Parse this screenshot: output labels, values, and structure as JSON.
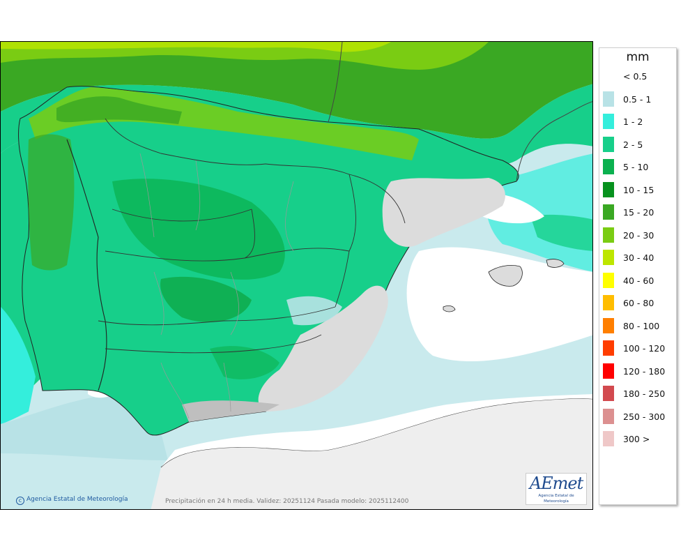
{
  "legend": {
    "unit": "mm",
    "items": [
      {
        "label": "< 0.5",
        "color": "#ffffff"
      },
      {
        "label": "0.5 - 1",
        "color": "#b8e2e6"
      },
      {
        "label": "1 - 2",
        "color": "#34eedc"
      },
      {
        "label": "2 - 5",
        "color": "#17cf8a"
      },
      {
        "label": "5 - 10",
        "color": "#0bb14f"
      },
      {
        "label": "10 - 15",
        "color": "#07921e"
      },
      {
        "label": "15 - 20",
        "color": "#3aa823"
      },
      {
        "label": "20 - 30",
        "color": "#7acc13"
      },
      {
        "label": "30 - 40",
        "color": "#bde600"
      },
      {
        "label": "40 - 60",
        "color": "#ffff00"
      },
      {
        "label": "60 - 80",
        "color": "#ffbd00"
      },
      {
        "label": "80 - 100",
        "color": "#ff7f00"
      },
      {
        "label": "100 - 120",
        "color": "#ff3d00"
      },
      {
        "label": "120 - 180",
        "color": "#ff0000"
      },
      {
        "label": "180 - 250",
        "color": "#d24a4f"
      },
      {
        "label": "250 - 300",
        "color": "#dc9090"
      },
      {
        "label": "300 >",
        "color": "#efc8c8"
      }
    ]
  },
  "map": {
    "credit": "Agencia Estatal de Meteorología",
    "caption": "Precipitación en 24 h media. Validez: 20251124 Pasada modelo: 2025112400",
    "logo_text": "AEmet",
    "logo_subtext": "Agencia Estatal de Meteorología"
  }
}
